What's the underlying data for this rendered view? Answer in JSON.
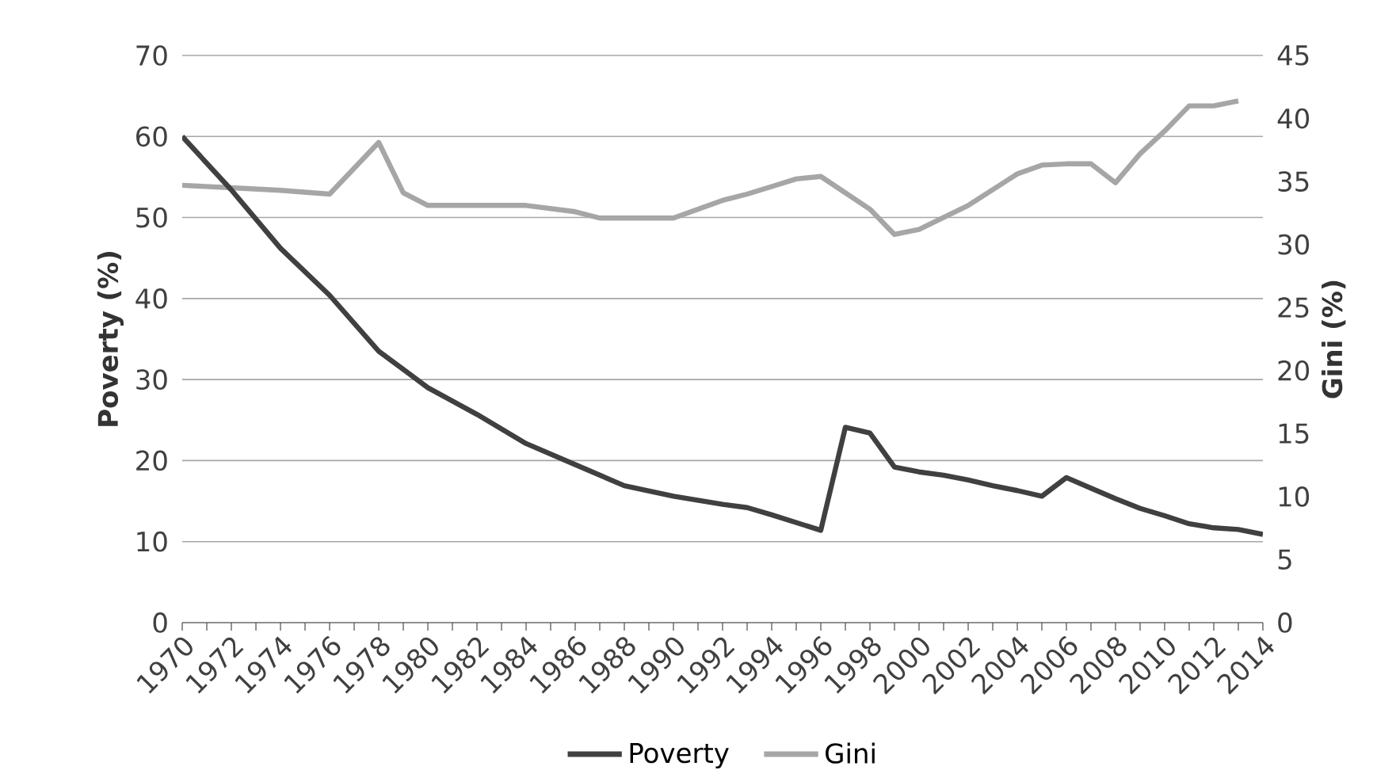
{
  "chart_data": {
    "type": "line",
    "ylabel": "Poverty (%)",
    "y2label": "Gini (%)",
    "xlim": [
      1970,
      2014
    ],
    "ylim": [
      0,
      70
    ],
    "yticks": [
      0,
      10,
      20,
      30,
      40,
      50,
      60,
      70
    ],
    "y2lim": [
      0,
      45
    ],
    "y2ticks": [
      0,
      5,
      10,
      15,
      20,
      25,
      30,
      35,
      40,
      45
    ],
    "xticks": [
      1970,
      {
        "value": 1971,
        "label": null
      },
      1972,
      {
        "value": 1973,
        "label": null
      },
      1974,
      {
        "value": 1975,
        "label": null
      },
      1976,
      {
        "value": 1977,
        "label": null
      },
      1978,
      {
        "value": 1979,
        "label": null
      },
      1980,
      {
        "value": 1981,
        "label": null
      },
      1982,
      {
        "value": 1983,
        "label": null
      },
      1984,
      {
        "value": 1985,
        "label": null
      },
      1986,
      {
        "value": 1987,
        "label": null
      },
      1988,
      {
        "value": 1989,
        "label": null
      },
      1990,
      {
        "value": 1991,
        "label": null
      },
      1992,
      {
        "value": 1993,
        "label": null
      },
      1994,
      {
        "value": 1995,
        "label": null
      },
      1996,
      {
        "value": 1997,
        "label": null
      },
      1998,
      {
        "value": 1999,
        "label": null
      },
      2000,
      {
        "value": 2001,
        "label": null
      },
      2002,
      {
        "value": 2003,
        "label": null
      },
      2004,
      {
        "value": 2005,
        "label": null
      },
      2006,
      {
        "value": 2007,
        "label": null
      },
      2008,
      {
        "value": 2009,
        "label": null
      },
      2010,
      {
        "value": 2011,
        "label": null
      },
      2012,
      {
        "value": 2013,
        "label": null
      },
      2014
    ],
    "grid": "y",
    "legend": "bottom",
    "marker": "none",
    "line_style": "solid",
    "series": [
      {
        "name": "Poverty",
        "color": "#404040",
        "x": [
          1970,
          1972,
          1974,
          1976,
          1978,
          1980,
          1982,
          1984,
          1986,
          1988,
          1990,
          1992,
          1993,
          1994,
          1996,
          1997,
          1998,
          1999,
          2000,
          2001,
          2002,
          2003,
          2004,
          2005,
          2006,
          2007,
          2008,
          2009,
          2010,
          2011,
          2012,
          2013,
          2014
        ],
        "values": [
          60,
          53.4,
          46.2,
          40.4,
          33.5,
          29,
          25.7,
          22.1,
          19.5,
          16.9,
          15.6,
          14.6,
          14.2,
          13.3,
          11.4,
          24.1,
          23.4,
          19.2,
          18.6,
          18.2,
          17.6,
          16.9,
          16.3,
          15.6,
          17.9,
          16.6,
          15.3,
          14.1,
          13.2,
          12.2,
          11.7,
          11.5,
          10.9
        ]
      },
      {
        "name": "Gini",
        "color": "#a6a6a6",
        "axis": "y2",
        "x": [
          1970,
          1972,
          1974,
          1976,
          1978,
          1979,
          1980,
          1982,
          1984,
          1986,
          1987,
          1988,
          1990,
          1992,
          1993,
          1994,
          1995,
          1996,
          1998,
          1999,
          2000,
          2002,
          2004,
          2005,
          2006,
          2007,
          2008,
          2009,
          2010,
          2011,
          2012,
          2013
        ],
        "values": [
          34.7,
          34.5,
          34.3,
          34.0,
          38.1,
          34.1,
          33.1,
          33.1,
          33.1,
          32.6,
          32.1,
          32.1,
          32.1,
          33.5,
          34.0,
          34.6,
          35.2,
          35.4,
          32.8,
          30.8,
          31.2,
          33.1,
          35.6,
          36.3,
          36.4,
          36.4,
          34.9,
          37.2,
          39.0,
          41.0,
          41.0,
          41.4
        ]
      }
    ]
  }
}
